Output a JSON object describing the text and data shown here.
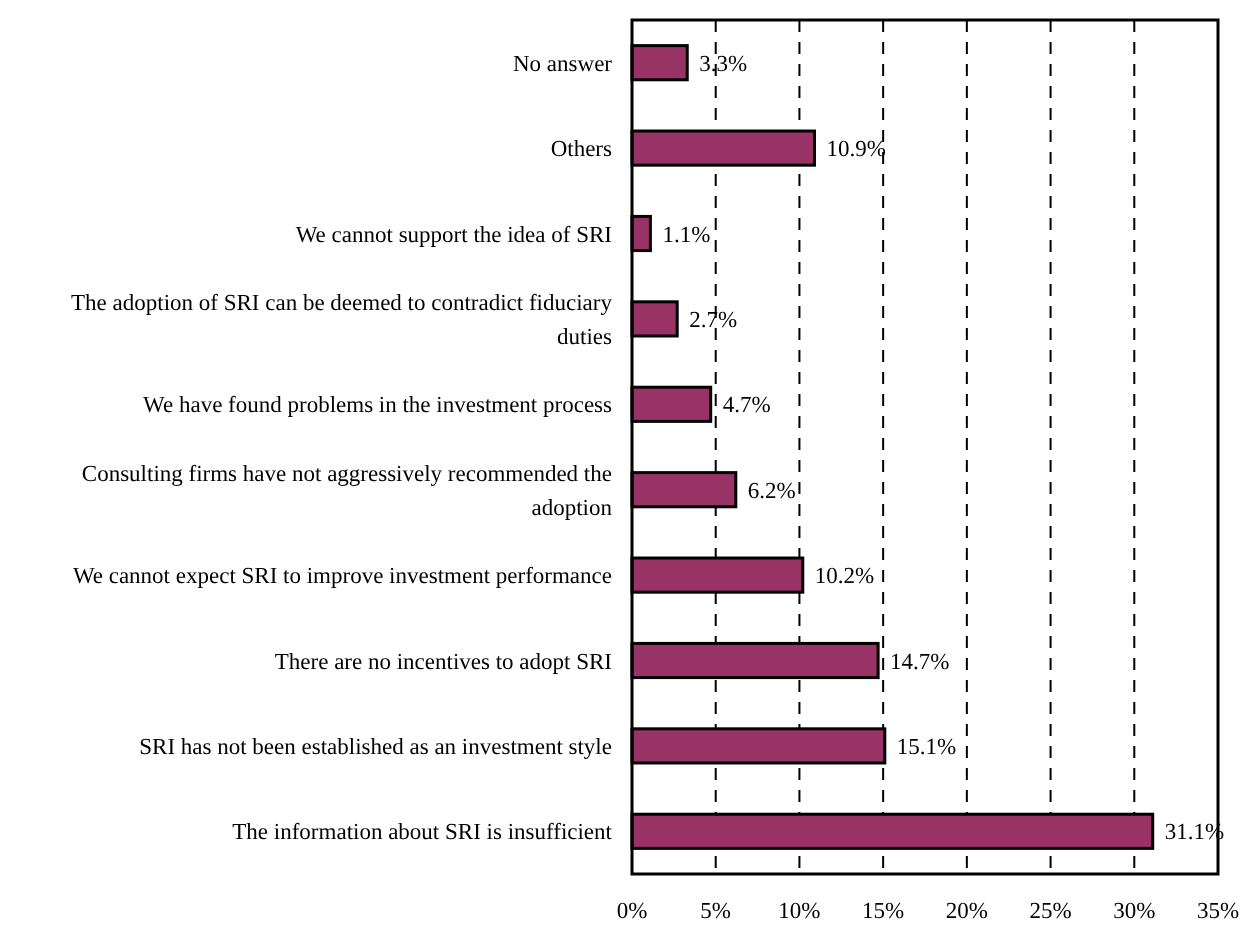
{
  "chart_data": {
    "type": "bar",
    "orientation": "horizontal",
    "categories": [
      "No answer",
      "Others",
      "We cannot support the idea of SRI",
      "The adoption of SRI can be deemed to contradict fiduciary duties",
      "We have found problems in the investment process",
      "Consulting firms have not aggressively recommended the adoption",
      "We cannot expect SRI to improve investment performance",
      "There are no incentives to adopt SRI",
      "SRI has not been established as an investment style",
      "The information about SRI is insufficient"
    ],
    "values": [
      3.3,
      10.9,
      1.1,
      2.7,
      4.7,
      6.2,
      10.2,
      14.7,
      15.1,
      31.1
    ],
    "value_labels": [
      "3.3%",
      "10.9%",
      "1.1%",
      "2.7%",
      "4.7%",
      "6.2%",
      "10.2%",
      "14.7%",
      "15.1%",
      "31.1%"
    ],
    "color": "#993366",
    "xlim": [
      0,
      35
    ],
    "xticks": [
      {
        "value": 0,
        "label": "0%"
      },
      {
        "value": 5,
        "label": "5%"
      },
      {
        "value": 10,
        "label": "10%"
      },
      {
        "value": 15,
        "label": "15%"
      },
      {
        "value": 20,
        "label": "20%"
      },
      {
        "value": 25,
        "label": "25%"
      },
      {
        "value": 30,
        "label": "30%"
      },
      {
        "value": 35,
        "label": "35%"
      }
    ],
    "grid": "x"
  }
}
